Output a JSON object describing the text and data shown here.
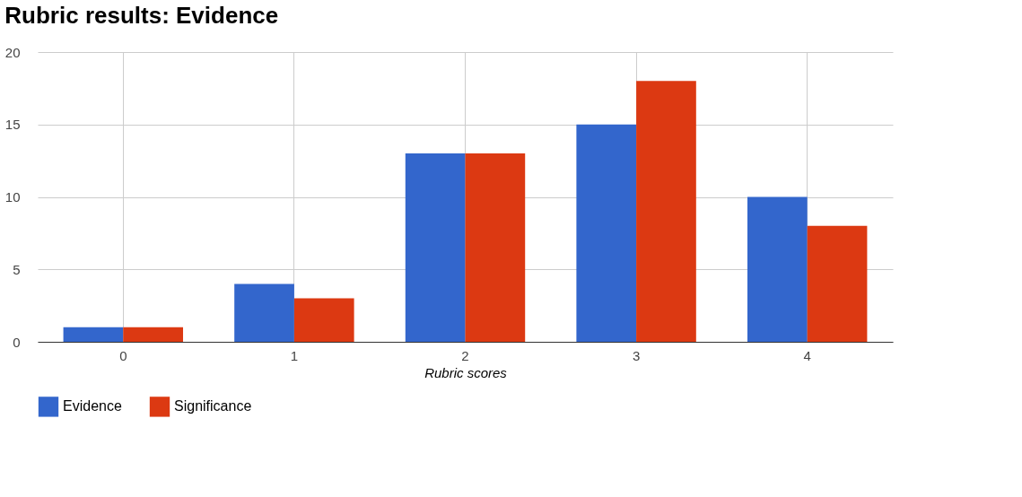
{
  "chart_data": {
    "type": "bar",
    "title": "Rubric results: Evidence",
    "xlabel": "Rubric scores",
    "categories": [
      "0",
      "1",
      "2",
      "3",
      "4"
    ],
    "series": [
      {
        "name": "Evidence",
        "color": "#3366cc",
        "values": [
          1,
          4,
          13,
          15,
          10
        ]
      },
      {
        "name": "Significance",
        "color": "#dc3912",
        "values": [
          1,
          3,
          13,
          18,
          8
        ]
      }
    ],
    "ylim": [
      0,
      20
    ],
    "yticks": [
      0,
      5,
      10,
      15,
      20
    ],
    "grid": true,
    "legend": "bottom"
  }
}
